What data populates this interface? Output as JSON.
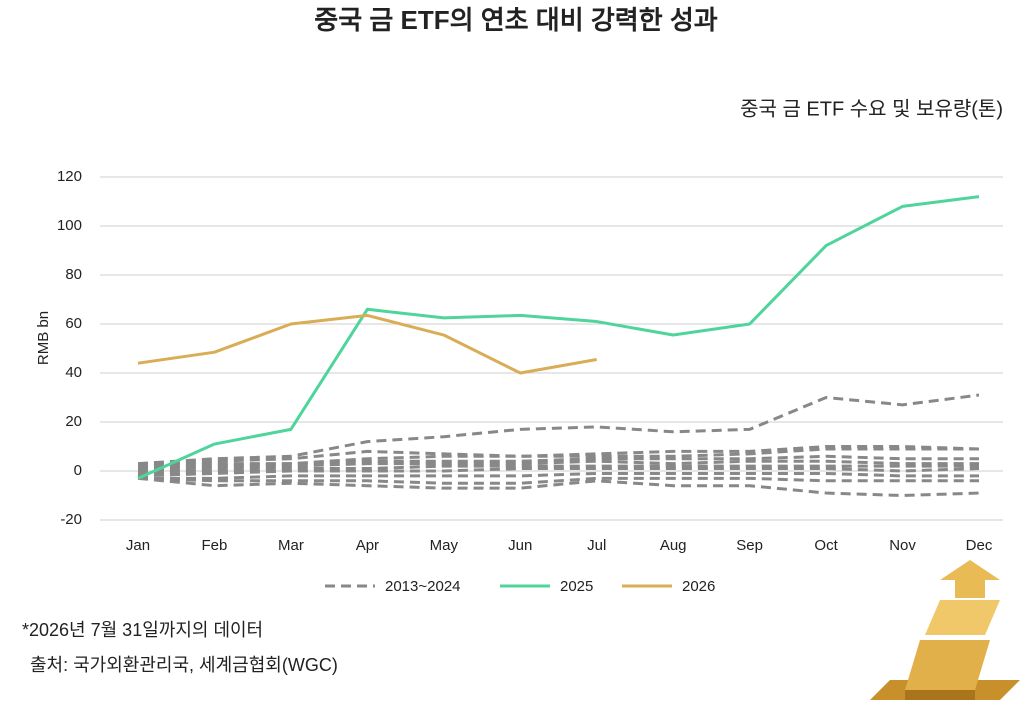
{
  "chart_data": {
    "type": "line",
    "title": "중국 금 ETF의 연초 대비 강력한 성과",
    "subtitle": "중국 금 ETF 수요 및 보유량(톤)",
    "y_label": "RMB bn",
    "note": "*2026년 7월 31일까지의 데이터",
    "source": "출처: 국가외환관리국, 세계금협회(WGC)",
    "categories": [
      "Jan",
      "Feb",
      "Mar",
      "Apr",
      "May",
      "Jun",
      "Jul",
      "Aug",
      "Sep",
      "Oct",
      "Nov",
      "Dec"
    ],
    "ylim": [
      -20,
      120
    ],
    "yticks": [
      -20,
      0,
      20,
      40,
      60,
      80,
      100,
      120
    ],
    "grid": true,
    "series": [
      {
        "name": "2013~2024",
        "color": "#888888",
        "dashed": true,
        "lines": [
          [
            3,
            5,
            6,
            12,
            14,
            17,
            18,
            16,
            17,
            30,
            27,
            31
          ],
          [
            2,
            4,
            5,
            8,
            7,
            6,
            7,
            8,
            8,
            10,
            10,
            9
          ],
          [
            1,
            3,
            3,
            5,
            6,
            6,
            6,
            6,
            7,
            9,
            9,
            9
          ],
          [
            0,
            2,
            3,
            4,
            4,
            4,
            5,
            5,
            5,
            6,
            5,
            5
          ],
          [
            -1,
            1,
            2,
            3,
            3,
            3,
            4,
            3,
            4,
            4,
            3,
            3
          ],
          [
            -2,
            0,
            1,
            1,
            2,
            2,
            2,
            2,
            2,
            2,
            2,
            2
          ],
          [
            -2,
            -1,
            0,
            0,
            0,
            1,
            1,
            1,
            1,
            1,
            0,
            1
          ],
          [
            -3,
            -3,
            -2,
            -2,
            -2,
            -2,
            -1,
            -1,
            -1,
            -1,
            -2,
            -2
          ],
          [
            -3,
            -4,
            -4,
            -4,
            -5,
            -5,
            -3,
            -3,
            -3,
            -4,
            -4,
            -4
          ],
          [
            -3,
            -6,
            -5,
            -6,
            -7,
            -7,
            -4,
            -6,
            -6,
            -9,
            -10,
            -9
          ]
        ]
      },
      {
        "name": "2025",
        "color": "#4fd49c",
        "values": [
          -3,
          11,
          17,
          66,
          62.5,
          63.5,
          61,
          55.5,
          60,
          92,
          108,
          112
        ]
      },
      {
        "name": "2026",
        "color": "#d9ad55",
        "values": [
          44,
          48.5,
          60,
          63.5,
          55.5,
          40,
          45.5,
          null,
          null,
          null,
          null,
          null
        ]
      }
    ]
  }
}
